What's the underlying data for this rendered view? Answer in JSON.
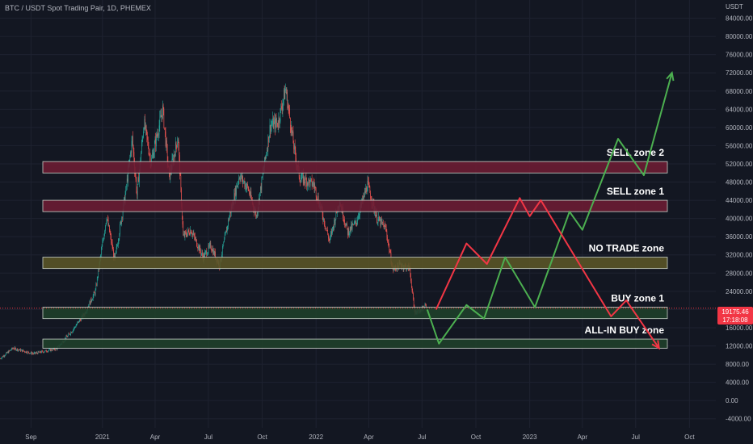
{
  "header": {
    "title": "BTC / USDT Spot Trading Pair, 1D, PHEMEX"
  },
  "colors": {
    "background": "#131722",
    "grid": "#1e2230",
    "up": "#26a69a",
    "down": "#ef5350",
    "sell_fill": "#6b1c33",
    "no_trade_fill": "#5a5427",
    "buy_fill": "#1f3f2a",
    "bull_path": "#4caf50",
    "bear_path": "#f23645",
    "price_tag": "#f23645"
  },
  "chart_data": {
    "type": "line",
    "title": "BTC / USDT Spot Trading Pair, 1D, PHEMEX",
    "y_axis_unit": "USDT",
    "ylim": [
      -6000,
      88000
    ],
    "yticks": [
      -4000,
      0,
      4000,
      8000,
      12000,
      16000,
      20000,
      24000,
      28000,
      32000,
      36000,
      40000,
      44000,
      48000,
      52000,
      56000,
      60000,
      64000,
      68000,
      72000,
      76000,
      80000,
      84000
    ],
    "ytick_labels": [
      "-4000.00",
      "0.00",
      "4000.00",
      "8000.00",
      "12000.00",
      "16000.00",
      "20000.00",
      "24000.00",
      "28000.00",
      "32000.00",
      "36000.00",
      "40000.00",
      "44000.00",
      "48000.00",
      "52000.00",
      "56000.00",
      "60000.00",
      "64000.00",
      "68000.00",
      "72000.00",
      "76000.00",
      "80000.00",
      "84000.00"
    ],
    "xlim": [
      "2020-07-10",
      "2023-11-15"
    ],
    "xticks": [
      {
        "date": "2020-09-01",
        "label": "Sep"
      },
      {
        "date": "2021-01-01",
        "label": "2021"
      },
      {
        "date": "2021-04-01",
        "label": "Apr"
      },
      {
        "date": "2021-07-01",
        "label": "Jul"
      },
      {
        "date": "2021-10-01",
        "label": "Oct"
      },
      {
        "date": "2022-01-01",
        "label": "2022"
      },
      {
        "date": "2022-04-01",
        "label": "Apr"
      },
      {
        "date": "2022-07-01",
        "label": "Jul"
      },
      {
        "date": "2022-10-01",
        "label": "Oct"
      },
      {
        "date": "2023-01-01",
        "label": "2023"
      },
      {
        "date": "2023-04-01",
        "label": "Apr"
      },
      {
        "date": "2023-07-01",
        "label": "Jul"
      },
      {
        "date": "2023-10-01",
        "label": "Oct"
      }
    ],
    "price_series": [
      {
        "date": "2020-07-10",
        "close": 9200
      },
      {
        "date": "2020-08-01",
        "close": 11500
      },
      {
        "date": "2020-09-05",
        "close": 10300
      },
      {
        "date": "2020-10-15",
        "close": 11400
      },
      {
        "date": "2020-11-10",
        "close": 15300
      },
      {
        "date": "2020-12-01",
        "close": 19000
      },
      {
        "date": "2020-12-20",
        "close": 24000
      },
      {
        "date": "2021-01-08",
        "close": 40500
      },
      {
        "date": "2021-01-22",
        "close": 30800
      },
      {
        "date": "2021-02-10",
        "close": 46000
      },
      {
        "date": "2021-02-21",
        "close": 57500
      },
      {
        "date": "2021-03-01",
        "close": 45200
      },
      {
        "date": "2021-03-13",
        "close": 61200
      },
      {
        "date": "2021-03-25",
        "close": 52300
      },
      {
        "date": "2021-04-14",
        "close": 64000
      },
      {
        "date": "2021-04-25",
        "close": 49000
      },
      {
        "date": "2021-05-10",
        "close": 58000
      },
      {
        "date": "2021-05-19",
        "close": 36000
      },
      {
        "date": "2021-06-01",
        "close": 37500
      },
      {
        "date": "2021-06-22",
        "close": 31500
      },
      {
        "date": "2021-07-05",
        "close": 34000
      },
      {
        "date": "2021-07-20",
        "close": 29800
      },
      {
        "date": "2021-08-05",
        "close": 40000
      },
      {
        "date": "2021-08-23",
        "close": 49500
      },
      {
        "date": "2021-09-07",
        "close": 46500
      },
      {
        "date": "2021-09-21",
        "close": 40500
      },
      {
        "date": "2021-10-15",
        "close": 60500
      },
      {
        "date": "2021-10-28",
        "close": 61000
      },
      {
        "date": "2021-11-10",
        "close": 68500
      },
      {
        "date": "2021-11-26",
        "close": 54000
      },
      {
        "date": "2021-12-04",
        "close": 49000
      },
      {
        "date": "2021-12-28",
        "close": 47500
      },
      {
        "date": "2022-01-10",
        "close": 41800
      },
      {
        "date": "2022-01-24",
        "close": 35000
      },
      {
        "date": "2022-02-10",
        "close": 44000
      },
      {
        "date": "2022-02-24",
        "close": 37000
      },
      {
        "date": "2022-03-10",
        "close": 39000
      },
      {
        "date": "2022-03-30",
        "close": 47500
      },
      {
        "date": "2022-04-15",
        "close": 40000
      },
      {
        "date": "2022-04-30",
        "close": 37800
      },
      {
        "date": "2022-05-12",
        "close": 28800
      },
      {
        "date": "2022-05-25",
        "close": 29800
      },
      {
        "date": "2022-06-10",
        "close": 29000
      },
      {
        "date": "2022-06-18",
        "close": 19500
      },
      {
        "date": "2022-06-30",
        "close": 19800
      },
      {
        "date": "2022-07-08",
        "close": 21000
      }
    ],
    "zones": [
      {
        "name": "SELL zone 2",
        "low": 50000,
        "high": 52500,
        "kind": "sell"
      },
      {
        "name": "SELL zone 1",
        "low": 41500,
        "high": 44000,
        "kind": "sell"
      },
      {
        "name": "NO TRADE zone",
        "low": 29000,
        "high": 31500,
        "kind": "no_trade"
      },
      {
        "name": "BUY zone 1",
        "low": 18000,
        "high": 20500,
        "kind": "buy"
      },
      {
        "name": "ALL-IN BUY zone",
        "low": 11500,
        "high": 13500,
        "kind": "buy"
      }
    ],
    "zones_x": [
      "2020-10-01",
      "2023-12-31"
    ],
    "projection_bear": [
      {
        "date": "2022-07-25",
        "value": 20000
      },
      {
        "date": "2022-09-15",
        "value": 34500
      },
      {
        "date": "2022-10-20",
        "value": 30000
      },
      {
        "date": "2022-12-15",
        "value": 44500
      },
      {
        "date": "2023-01-01",
        "value": 40500
      },
      {
        "date": "2023-01-20",
        "value": 44000
      },
      {
        "date": "2023-05-20",
        "value": 18500
      },
      {
        "date": "2023-06-15",
        "value": 22000
      },
      {
        "date": "2023-08-10",
        "value": 11500
      }
    ],
    "projection_bull": [
      {
        "date": "2022-07-10",
        "value": 20000
      },
      {
        "date": "2022-07-30",
        "value": 12500
      },
      {
        "date": "2022-09-15",
        "value": 21000
      },
      {
        "date": "2022-10-15",
        "value": 18000
      },
      {
        "date": "2022-11-20",
        "value": 31500
      },
      {
        "date": "2023-01-10",
        "value": 20500
      },
      {
        "date": "2023-03-10",
        "value": 41500
      },
      {
        "date": "2023-04-01",
        "value": 37500
      },
      {
        "date": "2023-06-01",
        "value": 57500
      },
      {
        "date": "2023-07-15",
        "value": 49500
      },
      {
        "date": "2023-09-01",
        "value": 72000
      }
    ],
    "last_price": {
      "value": 19175.46,
      "label": "19175.46",
      "countdown": "17:18:08"
    },
    "current_price_line": 20300
  }
}
